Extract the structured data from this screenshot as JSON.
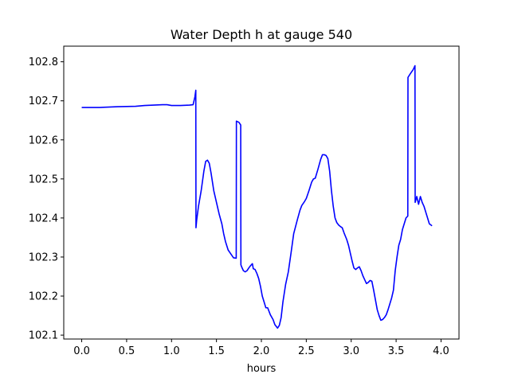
{
  "chart_data": {
    "type": "line",
    "title": "Water Depth h at gauge 540",
    "xlabel": "hours",
    "ylabel": "",
    "xlim": [
      -0.2,
      4.2
    ],
    "ylim": [
      102.09,
      102.84
    ],
    "x_ticks": [
      0.0,
      0.5,
      1.0,
      1.5,
      2.0,
      2.5,
      3.0,
      3.5,
      4.0
    ],
    "x_tick_labels": [
      "0.0",
      "0.5",
      "1.0",
      "1.5",
      "2.0",
      "2.5",
      "3.0",
      "3.5",
      "4.0"
    ],
    "y_ticks": [
      102.1,
      102.2,
      102.3,
      102.4,
      102.5,
      102.6,
      102.7,
      102.8
    ],
    "y_tick_labels": [
      "102.1",
      "102.2",
      "102.3",
      "102.4",
      "102.5",
      "102.6",
      "102.7",
      "102.8"
    ],
    "grid": false,
    "series": [
      {
        "color": "#0000ff",
        "points": [
          [
            0.0,
            102.683
          ],
          [
            0.2,
            102.683
          ],
          [
            0.4,
            102.685
          ],
          [
            0.6,
            102.686
          ],
          [
            0.7,
            102.688
          ],
          [
            0.9,
            102.69
          ],
          [
            0.95,
            102.69
          ],
          [
            1.0,
            102.688
          ],
          [
            1.1,
            102.688
          ],
          [
            1.2,
            102.689
          ],
          [
            1.24,
            102.69
          ],
          [
            1.26,
            102.71
          ],
          [
            1.27,
            102.727
          ],
          [
            1.272,
            102.375
          ],
          [
            1.28,
            102.395
          ],
          [
            1.3,
            102.43
          ],
          [
            1.33,
            102.47
          ],
          [
            1.36,
            102.52
          ],
          [
            1.38,
            102.545
          ],
          [
            1.4,
            102.548
          ],
          [
            1.42,
            102.54
          ],
          [
            1.44,
            102.515
          ],
          [
            1.47,
            102.47
          ],
          [
            1.5,
            102.44
          ],
          [
            1.53,
            102.41
          ],
          [
            1.56,
            102.385
          ],
          [
            1.58,
            102.36
          ],
          [
            1.6,
            102.34
          ],
          [
            1.63,
            102.318
          ],
          [
            1.66,
            102.308
          ],
          [
            1.69,
            102.298
          ],
          [
            1.72,
            102.297
          ],
          [
            1.722,
            102.648
          ],
          [
            1.75,
            102.645
          ],
          [
            1.77,
            102.638
          ],
          [
            1.772,
            102.28
          ],
          [
            1.78,
            102.275
          ],
          [
            1.8,
            102.265
          ],
          [
            1.82,
            102.262
          ],
          [
            1.84,
            102.265
          ],
          [
            1.86,
            102.272
          ],
          [
            1.88,
            102.278
          ],
          [
            1.9,
            102.283
          ],
          [
            1.91,
            102.27
          ],
          [
            1.93,
            102.268
          ],
          [
            1.95,
            102.258
          ],
          [
            1.97,
            102.245
          ],
          [
            1.99,
            102.225
          ],
          [
            2.01,
            102.2
          ],
          [
            2.03,
            102.185
          ],
          [
            2.05,
            102.17
          ],
          [
            2.07,
            102.17
          ],
          [
            2.1,
            102.152
          ],
          [
            2.13,
            102.14
          ],
          [
            2.15,
            102.127
          ],
          [
            2.18,
            102.118
          ],
          [
            2.2,
            102.125
          ],
          [
            2.22,
            102.145
          ],
          [
            2.24,
            102.185
          ],
          [
            2.27,
            102.23
          ],
          [
            2.3,
            102.262
          ],
          [
            2.33,
            102.31
          ],
          [
            2.36,
            102.36
          ],
          [
            2.4,
            102.395
          ],
          [
            2.43,
            102.42
          ],
          [
            2.45,
            102.432
          ],
          [
            2.48,
            102.442
          ],
          [
            2.5,
            102.45
          ],
          [
            2.53,
            102.47
          ],
          [
            2.56,
            102.492
          ],
          [
            2.58,
            102.5
          ],
          [
            2.6,
            102.502
          ],
          [
            2.63,
            102.525
          ],
          [
            2.66,
            102.55
          ],
          [
            2.68,
            102.562
          ],
          [
            2.7,
            102.562
          ],
          [
            2.72,
            102.56
          ],
          [
            2.74,
            102.552
          ],
          [
            2.76,
            102.52
          ],
          [
            2.78,
            102.47
          ],
          [
            2.8,
            102.43
          ],
          [
            2.82,
            102.4
          ],
          [
            2.84,
            102.388
          ],
          [
            2.86,
            102.382
          ],
          [
            2.88,
            102.378
          ],
          [
            2.9,
            102.375
          ],
          [
            2.92,
            102.362
          ],
          [
            2.95,
            102.345
          ],
          [
            2.97,
            102.33
          ],
          [
            2.99,
            102.31
          ],
          [
            3.01,
            102.29
          ],
          [
            3.03,
            102.272
          ],
          [
            3.05,
            102.268
          ],
          [
            3.07,
            102.272
          ],
          [
            3.09,
            102.275
          ],
          [
            3.11,
            102.265
          ],
          [
            3.13,
            102.252
          ],
          [
            3.15,
            102.242
          ],
          [
            3.17,
            102.232
          ],
          [
            3.19,
            102.235
          ],
          [
            3.21,
            102.24
          ],
          [
            3.23,
            102.238
          ],
          [
            3.25,
            102.215
          ],
          [
            3.27,
            102.19
          ],
          [
            3.29,
            102.165
          ],
          [
            3.31,
            102.15
          ],
          [
            3.33,
            102.138
          ],
          [
            3.35,
            102.14
          ],
          [
            3.37,
            102.145
          ],
          [
            3.39,
            102.152
          ],
          [
            3.41,
            102.165
          ],
          [
            3.43,
            102.18
          ],
          [
            3.45,
            102.195
          ],
          [
            3.47,
            102.215
          ],
          [
            3.49,
            102.265
          ],
          [
            3.51,
            102.3
          ],
          [
            3.53,
            102.33
          ],
          [
            3.55,
            102.345
          ],
          [
            3.57,
            102.37
          ],
          [
            3.59,
            102.385
          ],
          [
            3.61,
            102.4
          ],
          [
            3.63,
            102.405
          ],
          [
            3.632,
            102.76
          ],
          [
            3.66,
            102.77
          ],
          [
            3.69,
            102.78
          ],
          [
            3.71,
            102.79
          ],
          [
            3.712,
            102.44
          ],
          [
            3.73,
            102.455
          ],
          [
            3.75,
            102.435
          ],
          [
            3.77,
            102.455
          ],
          [
            3.79,
            102.44
          ],
          [
            3.81,
            102.43
          ],
          [
            3.83,
            102.415
          ],
          [
            3.85,
            102.4
          ],
          [
            3.87,
            102.385
          ],
          [
            3.9,
            102.38
          ]
        ]
      }
    ]
  }
}
